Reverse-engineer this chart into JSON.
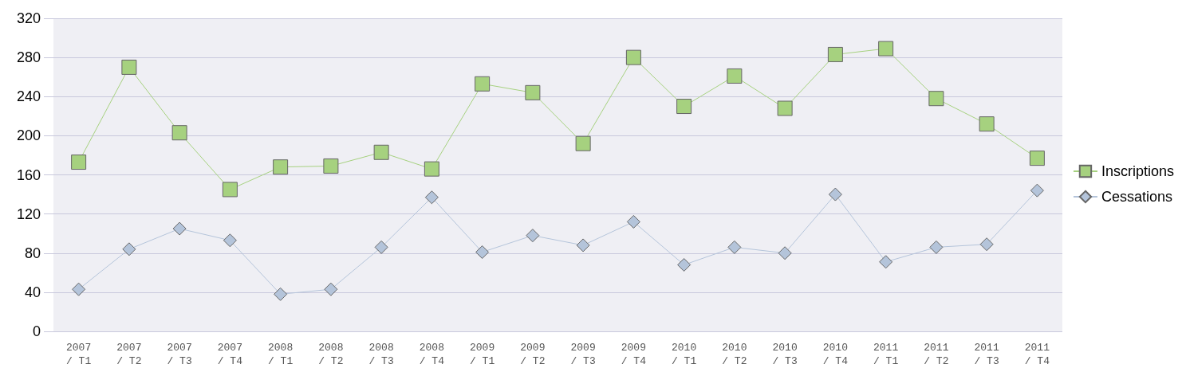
{
  "chart_data": {
    "type": "line",
    "categories": [
      "2007\n/ T1",
      "2007\n/ T2",
      "2007\n/ T3",
      "2007\n/ T4",
      "2008\n/ T1",
      "2008\n/ T2",
      "2008\n/ T3",
      "2008\n/ T4",
      "2009\n/ T1",
      "2009\n/ T2",
      "2009\n/ T3",
      "2009\n/ T4",
      "2010\n/ T1",
      "2010\n/ T2",
      "2010\n/ T3",
      "2010\n/ T4",
      "2011\n/ T1",
      "2011\n/ T2",
      "2011\n/ T3",
      "2011\n/ T4"
    ],
    "series": [
      {
        "name": "Inscriptions",
        "color": "#a6d17f",
        "marker": "square",
        "values": [
          173,
          270,
          203,
          145,
          168,
          169,
          183,
          166,
          253,
          244,
          192,
          280,
          230,
          261,
          228,
          283,
          289,
          238,
          212,
          177
        ]
      },
      {
        "name": "Cessations",
        "color": "#b4c4da",
        "marker": "diamond",
        "values": [
          43,
          84,
          105,
          93,
          38,
          43,
          86,
          137,
          81,
          98,
          88,
          112,
          68,
          86,
          80,
          140,
          71,
          86,
          89,
          144
        ]
      }
    ],
    "ylim": [
      0,
      320
    ],
    "yticks": [
      0,
      40,
      80,
      120,
      160,
      200,
      240,
      280,
      320
    ],
    "grid": "y",
    "legend": "right",
    "line_style": "solid"
  }
}
